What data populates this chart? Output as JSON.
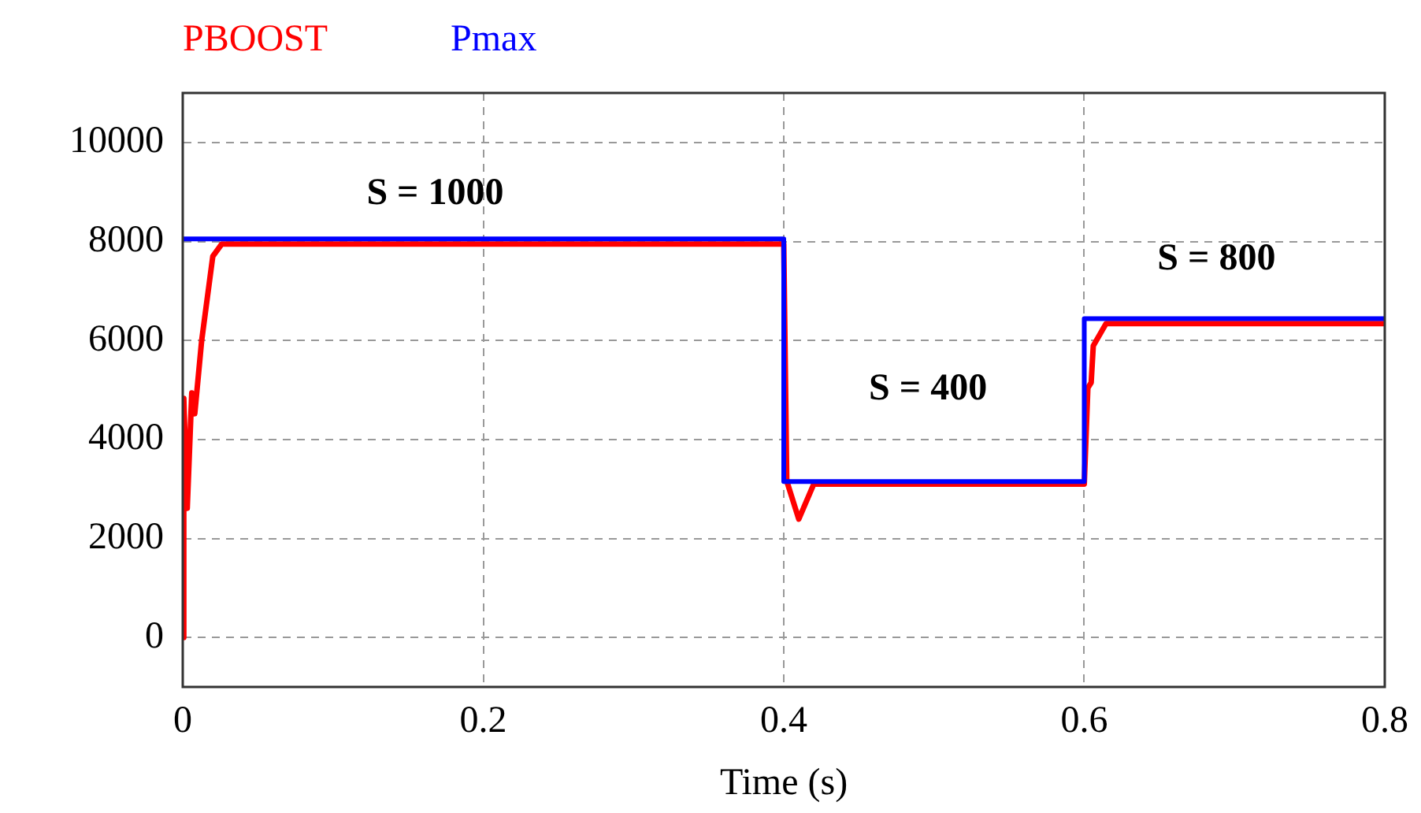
{
  "chart_data": {
    "type": "line",
    "xlabel": "Time (s)",
    "xlim": [
      0,
      0.8
    ],
    "xticks": [
      0,
      0.2,
      0.4,
      0.6,
      0.8
    ],
    "ylim": [
      -1000,
      11000
    ],
    "yticks": [
      0,
      2000,
      4000,
      6000,
      8000,
      10000
    ],
    "grid": true,
    "legend": "top left",
    "marker": "none",
    "line_style": "solid",
    "series": [
      {
        "name": "PBOOST",
        "color": "#ff0000",
        "x": [
          0,
          0.0007,
          0.003,
          0.006,
          0.008,
          0.0126,
          0.02,
          0.026,
          0.4,
          0.402,
          0.41,
          0.42,
          0.6,
          0.6024,
          0.6046,
          0.606,
          0.6145,
          0.8
        ],
        "values": [
          0,
          4830,
          2610,
          4940,
          4520,
          6000,
          7700,
          7950,
          7950,
          3160,
          2390,
          3100,
          3100,
          5040,
          5150,
          5890,
          6340,
          6340
        ]
      },
      {
        "name": "Pmax",
        "color": "#0000ff",
        "x": [
          0,
          0.4,
          0.4,
          0.6,
          0.6,
          0.8
        ],
        "values": [
          8050,
          8050,
          3150,
          3150,
          6440,
          6440
        ]
      }
    ],
    "annotations": [
      "S = 1000",
      "S = 400",
      "S = 800"
    ]
  }
}
